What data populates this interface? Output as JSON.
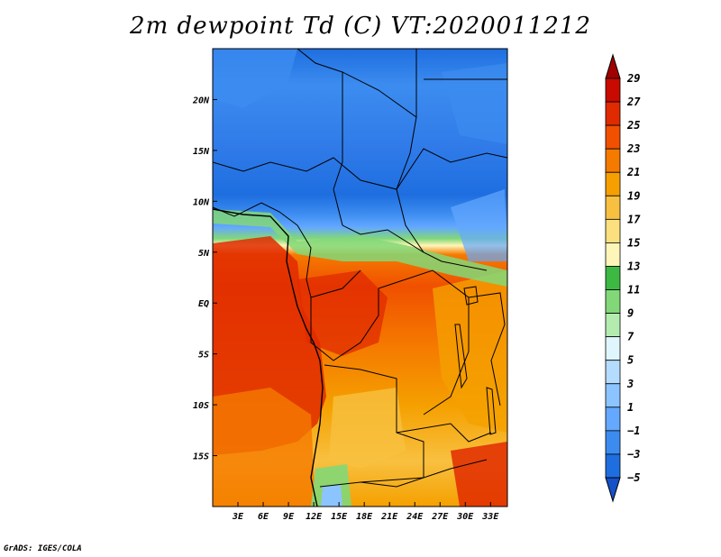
{
  "title": "2m dewpoint Td (C) VT:2020011212",
  "credit": "GrADS: IGES/COLA",
  "map": {
    "lon_range": [
      0,
      35
    ],
    "lat_range": [
      -20,
      25
    ],
    "x_ticks": [
      "3E",
      "6E",
      "9E",
      "12E",
      "15E",
      "18E",
      "21E",
      "24E",
      "27E",
      "30E",
      "33E"
    ],
    "x_tick_values": [
      3,
      6,
      9,
      12,
      15,
      18,
      21,
      24,
      27,
      30,
      33
    ],
    "y_ticks": [
      "20N",
      "15N",
      "10N",
      "5N",
      "EQ",
      "5S",
      "10S",
      "15S"
    ],
    "y_tick_values": [
      20,
      15,
      10,
      5,
      0,
      -5,
      -10,
      -15
    ]
  },
  "colorbar": {
    "labels": [
      "29",
      "27",
      "25",
      "23",
      "21",
      "19",
      "17",
      "15",
      "13",
      "11",
      "9",
      "7",
      "5",
      "3",
      "1",
      "−1",
      "−3",
      "−5"
    ],
    "colors": [
      "#a00000",
      "#c80a00",
      "#e02a00",
      "#f05000",
      "#f57a00",
      "#f5a000",
      "#f8c040",
      "#fce080",
      "#fef6b8",
      "#3cb843",
      "#82d878",
      "#b4ecb0",
      "#e0f6ff",
      "#b4dcff",
      "#8cc4ff",
      "#64a8ff",
      "#3c8cf0",
      "#1e6ee0",
      "#1450c8"
    ]
  }
}
